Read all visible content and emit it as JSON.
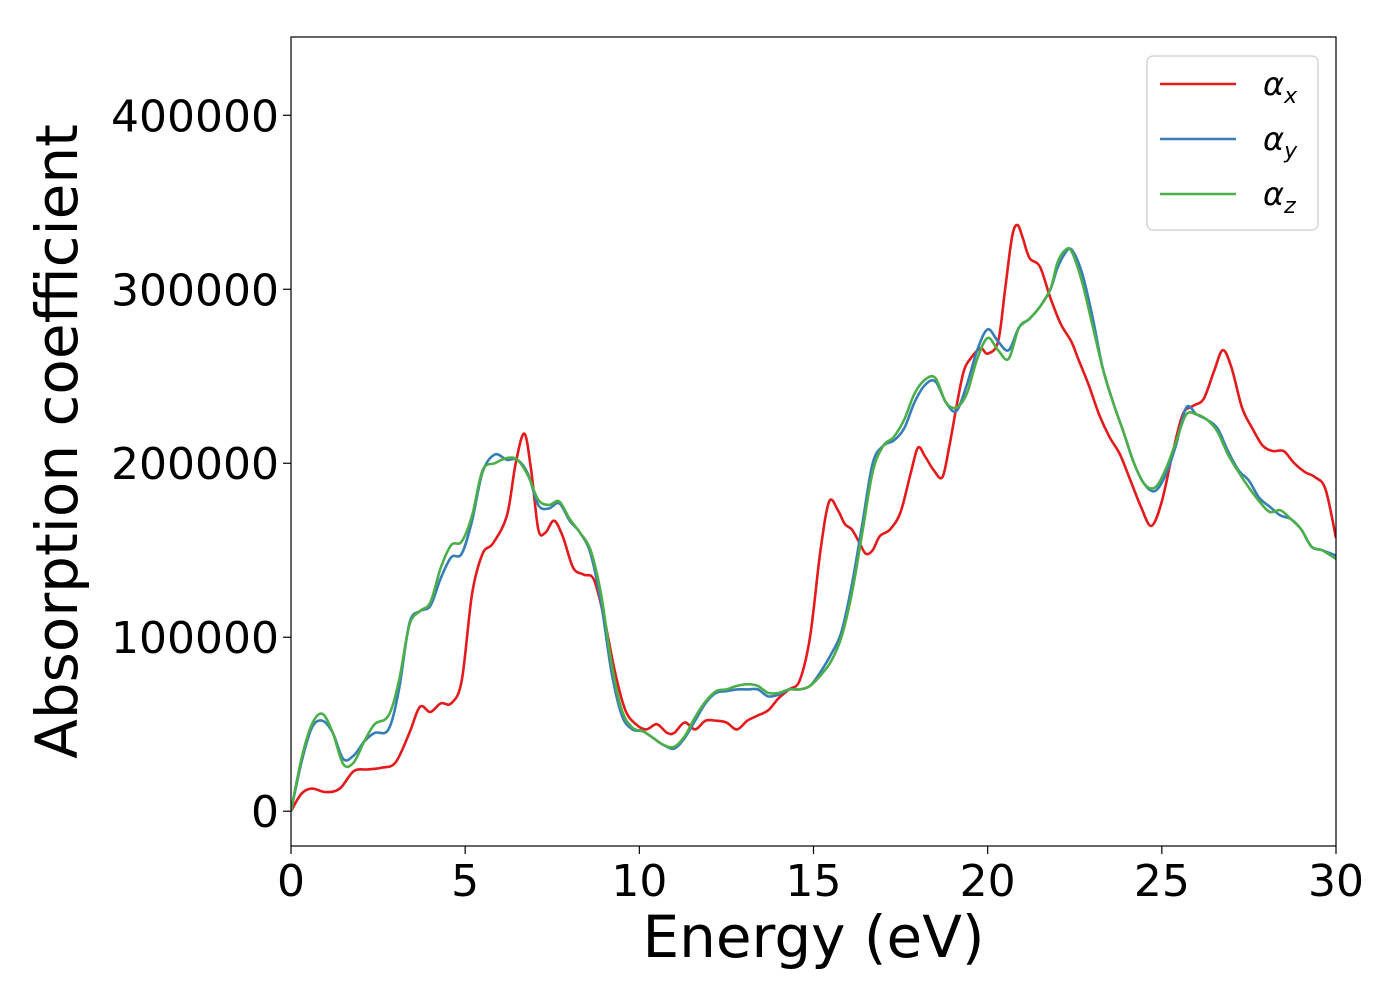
{
  "chart_data": {
    "type": "line",
    "xlabel": "Energy (eV)",
    "ylabel": "Absorption coefficient",
    "xlim": [
      0,
      30
    ],
    "ylim": [
      -20000,
      445000
    ],
    "xticks": [
      0,
      5,
      10,
      15,
      20,
      25,
      30
    ],
    "yticks": [
      0,
      100000,
      200000,
      300000,
      400000
    ],
    "grid": false,
    "legend_position": "top-right",
    "series": [
      {
        "name": "α",
        "subscript": "x",
        "color": "#e41a1c",
        "x": [
          0,
          0.3,
          0.6,
          1.0,
          1.4,
          1.8,
          2.2,
          2.6,
          3.0,
          3.4,
          3.7,
          4.0,
          4.3,
          4.6,
          4.9,
          5.2,
          5.5,
          5.8,
          6.2,
          6.45,
          6.7,
          6.9,
          7.1,
          7.3,
          7.55,
          7.8,
          8.1,
          8.4,
          8.7,
          9.0,
          9.3,
          9.6,
          9.9,
          10.2,
          10.5,
          10.8,
          11.0,
          11.3,
          11.6,
          11.9,
          12.2,
          12.5,
          12.8,
          13.1,
          13.4,
          13.7,
          14.0,
          14.3,
          14.6,
          14.9,
          15.2,
          15.45,
          15.7,
          15.9,
          16.1,
          16.3,
          16.5,
          16.7,
          16.9,
          17.2,
          17.5,
          17.8,
          18.0,
          18.2,
          18.45,
          18.7,
          18.9,
          19.1,
          19.3,
          19.5,
          19.8,
          20.0,
          20.3,
          20.5,
          20.7,
          20.85,
          21.0,
          21.2,
          21.5,
          21.8,
          22.1,
          22.4,
          22.6,
          22.9,
          23.2,
          23.5,
          23.8,
          24.1,
          24.4,
          24.7,
          25.0,
          25.3,
          25.6,
          25.9,
          26.2,
          26.5,
          26.75,
          27.0,
          27.3,
          27.6,
          27.9,
          28.2,
          28.5,
          28.8,
          29.1,
          29.4,
          29.7,
          30.0
        ],
        "values": [
          0,
          10000,
          13000,
          11000,
          13000,
          23000,
          24000,
          25000,
          28000,
          45000,
          60000,
          57000,
          62000,
          62000,
          75000,
          125000,
          148000,
          154000,
          170000,
          200000,
          217000,
          195000,
          162000,
          160000,
          167000,
          158000,
          140000,
          136000,
          133000,
          110000,
          80000,
          58000,
          50000,
          47000,
          50000,
          45000,
          45000,
          51000,
          47000,
          52000,
          52000,
          51000,
          47000,
          52000,
          55000,
          58000,
          65000,
          70000,
          75000,
          100000,
          150000,
          178000,
          173000,
          165000,
          162000,
          155000,
          148000,
          150000,
          158000,
          162000,
          172000,
          195000,
          209000,
          204000,
          196000,
          192000,
          210000,
          232000,
          252000,
          260000,
          266000,
          263000,
          270000,
          300000,
          330000,
          337000,
          330000,
          318000,
          313000,
          295000,
          280000,
          270000,
          260000,
          245000,
          228000,
          215000,
          205000,
          190000,
          175000,
          164000,
          178000,
          205000,
          228000,
          233000,
          237000,
          253000,
          265000,
          255000,
          232000,
          220000,
          210000,
          207000,
          207000,
          200000,
          195000,
          192000,
          185000,
          157000
        ]
      },
      {
        "name": "α",
        "subscript": "y",
        "color": "#377eb8",
        "x": [
          0,
          0.3,
          0.6,
          0.9,
          1.2,
          1.5,
          1.8,
          2.1,
          2.4,
          2.8,
          3.1,
          3.4,
          3.7,
          4.0,
          4.3,
          4.6,
          4.9,
          5.2,
          5.5,
          5.85,
          6.2,
          6.5,
          6.8,
          7.1,
          7.4,
          7.7,
          8.0,
          8.3,
          8.6,
          8.9,
          9.2,
          9.5,
          9.8,
          10.1,
          10.4,
          10.7,
          11.0,
          11.3,
          11.6,
          11.9,
          12.2,
          12.5,
          12.8,
          13.1,
          13.4,
          13.7,
          14.0,
          14.3,
          14.6,
          14.9,
          15.2,
          15.5,
          15.8,
          16.1,
          16.4,
          16.7,
          17.0,
          17.3,
          17.6,
          17.9,
          18.2,
          18.5,
          18.8,
          19.1,
          19.4,
          19.7,
          20.0,
          20.3,
          20.6,
          20.9,
          21.2,
          21.5,
          21.8,
          22.0,
          22.2,
          22.4,
          22.7,
          23.0,
          23.3,
          23.6,
          23.9,
          24.2,
          24.5,
          24.8,
          25.1,
          25.4,
          25.7,
          26.0,
          26.3,
          26.6,
          26.9,
          27.2,
          27.5,
          27.8,
          28.1,
          28.4,
          28.7,
          29.0,
          29.3,
          29.6,
          30.0
        ],
        "values": [
          0,
          28000,
          48000,
          52000,
          45000,
          30000,
          32000,
          40000,
          45000,
          47000,
          70000,
          108000,
          115000,
          118000,
          134000,
          146000,
          148000,
          167000,
          195000,
          205000,
          202000,
          202000,
          194000,
          176000,
          174000,
          177000,
          167000,
          160000,
          148000,
          120000,
          80000,
          55000,
          47000,
          46000,
          42000,
          38000,
          36000,
          42000,
          52000,
          62000,
          68000,
          69000,
          70000,
          70000,
          70000,
          66000,
          67000,
          70000,
          70000,
          72000,
          80000,
          90000,
          103000,
          130000,
          165000,
          200000,
          210000,
          213000,
          220000,
          235000,
          245000,
          247000,
          235000,
          230000,
          245000,
          265000,
          277000,
          270000,
          265000,
          278000,
          283000,
          290000,
          300000,
          312000,
          320000,
          323000,
          310000,
          285000,
          255000,
          235000,
          218000,
          200000,
          188000,
          184000,
          193000,
          210000,
          232000,
          228000,
          225000,
          220000,
          207000,
          196000,
          190000,
          180000,
          175000,
          170000,
          168000,
          162000,
          152000,
          150000,
          147000
        ]
      },
      {
        "name": "α",
        "subscript": "z",
        "color": "#4daf4a",
        "x": [
          0,
          0.3,
          0.6,
          0.9,
          1.2,
          1.5,
          1.8,
          2.1,
          2.4,
          2.8,
          3.1,
          3.4,
          3.7,
          4.0,
          4.3,
          4.6,
          4.9,
          5.2,
          5.5,
          5.85,
          6.2,
          6.5,
          6.8,
          7.1,
          7.4,
          7.7,
          8.0,
          8.3,
          8.6,
          8.9,
          9.2,
          9.5,
          9.8,
          10.1,
          10.4,
          10.7,
          11.0,
          11.3,
          11.6,
          11.9,
          12.2,
          12.5,
          12.8,
          13.1,
          13.4,
          13.7,
          14.0,
          14.3,
          14.6,
          14.9,
          15.2,
          15.5,
          15.8,
          16.1,
          16.4,
          16.7,
          17.0,
          17.3,
          17.6,
          17.9,
          18.2,
          18.5,
          18.8,
          19.1,
          19.4,
          19.7,
          20.0,
          20.3,
          20.6,
          20.9,
          21.2,
          21.5,
          21.8,
          22.0,
          22.2,
          22.4,
          22.7,
          23.0,
          23.3,
          23.6,
          23.9,
          24.2,
          24.5,
          24.8,
          25.1,
          25.4,
          25.7,
          26.0,
          26.3,
          26.6,
          26.9,
          27.2,
          27.5,
          27.8,
          28.1,
          28.4,
          28.7,
          29.0,
          29.3,
          29.6,
          30.0
        ],
        "values": [
          0,
          30000,
          50000,
          56000,
          45000,
          27000,
          28000,
          40000,
          50000,
          55000,
          75000,
          107000,
          115000,
          120000,
          140000,
          153000,
          155000,
          170000,
          196000,
          200000,
          203000,
          202000,
          193000,
          179000,
          176000,
          178000,
          168000,
          160000,
          150000,
          125000,
          85000,
          58000,
          48000,
          46000,
          42000,
          38000,
          37000,
          43000,
          54000,
          63000,
          69000,
          70000,
          72000,
          73000,
          72000,
          68000,
          68000,
          70000,
          70000,
          72000,
          78000,
          86000,
          100000,
          125000,
          160000,
          195000,
          210000,
          215000,
          225000,
          240000,
          248000,
          249000,
          235000,
          232000,
          240000,
          260000,
          272000,
          265000,
          260000,
          278000,
          283000,
          290000,
          300000,
          315000,
          322000,
          322000,
          305000,
          280000,
          255000,
          235000,
          218000,
          200000,
          188000,
          186000,
          196000,
          212000,
          228000,
          228000,
          225000,
          218000,
          205000,
          195000,
          186000,
          178000,
          172000,
          173000,
          168000,
          162000,
          152000,
          150000,
          145000
        ]
      }
    ]
  }
}
